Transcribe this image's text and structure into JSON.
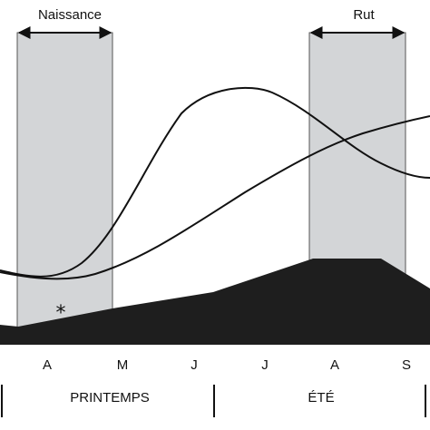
{
  "diagram": {
    "periods": {
      "birth": {
        "label": "Naissance"
      },
      "rut": {
        "label": "Rut"
      }
    },
    "marker": "*",
    "months": [
      "A",
      "M",
      "J",
      "J",
      "A",
      "S"
    ],
    "seasons": {
      "spring": "PRINTEMPS",
      "summer": "ÉTÉ"
    },
    "colors": {
      "band_fill": "#d3d5d7",
      "band_stroke": "#555555",
      "area_fill": "#1e1e1e",
      "curve_stroke": "#111111"
    }
  }
}
